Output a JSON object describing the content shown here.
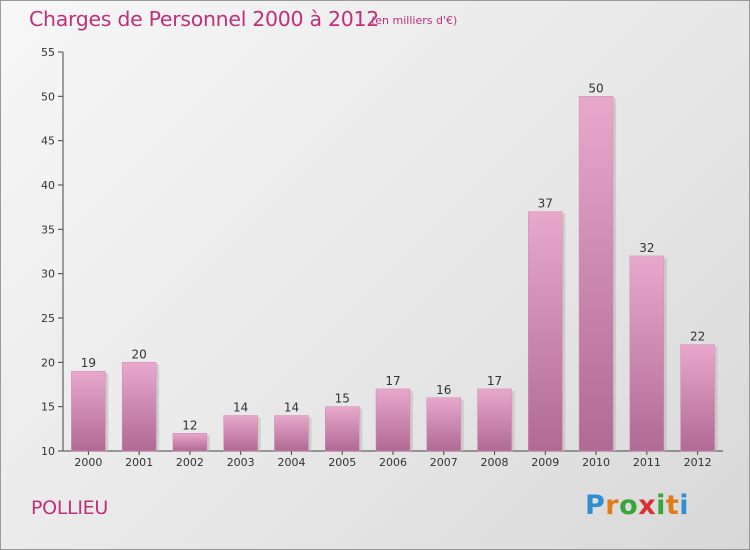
{
  "title": "Charges de Personnel 2000 à 2012",
  "subtitle": "(en milliers d'€)",
  "place": "POLLIEU",
  "logo": {
    "text": "Proxiti",
    "colors": [
      "#2f8fd0",
      "#e07d1a",
      "#3aa53a",
      "#d93030"
    ]
  },
  "colors": {
    "accent": "#c0307a",
    "bar_top": "#e8a8cc",
    "bar_bottom": "#b06a94"
  },
  "chart_data": {
    "type": "bar",
    "title": "Charges de Personnel 2000 à 2012",
    "subtitle": "(en milliers d'€)",
    "categories": [
      "2000",
      "2001",
      "2002",
      "2003",
      "2004",
      "2005",
      "2006",
      "2007",
      "2008",
      "2009",
      "2010",
      "2011",
      "2012"
    ],
    "values": [
      19,
      20,
      12,
      14,
      14,
      15,
      17,
      16,
      17,
      37,
      50,
      32,
      22
    ],
    "ylim": [
      10,
      55
    ],
    "yticks": [
      10,
      15,
      20,
      25,
      30,
      35,
      40,
      45,
      50,
      55
    ],
    "grid": false,
    "legend": "none"
  }
}
